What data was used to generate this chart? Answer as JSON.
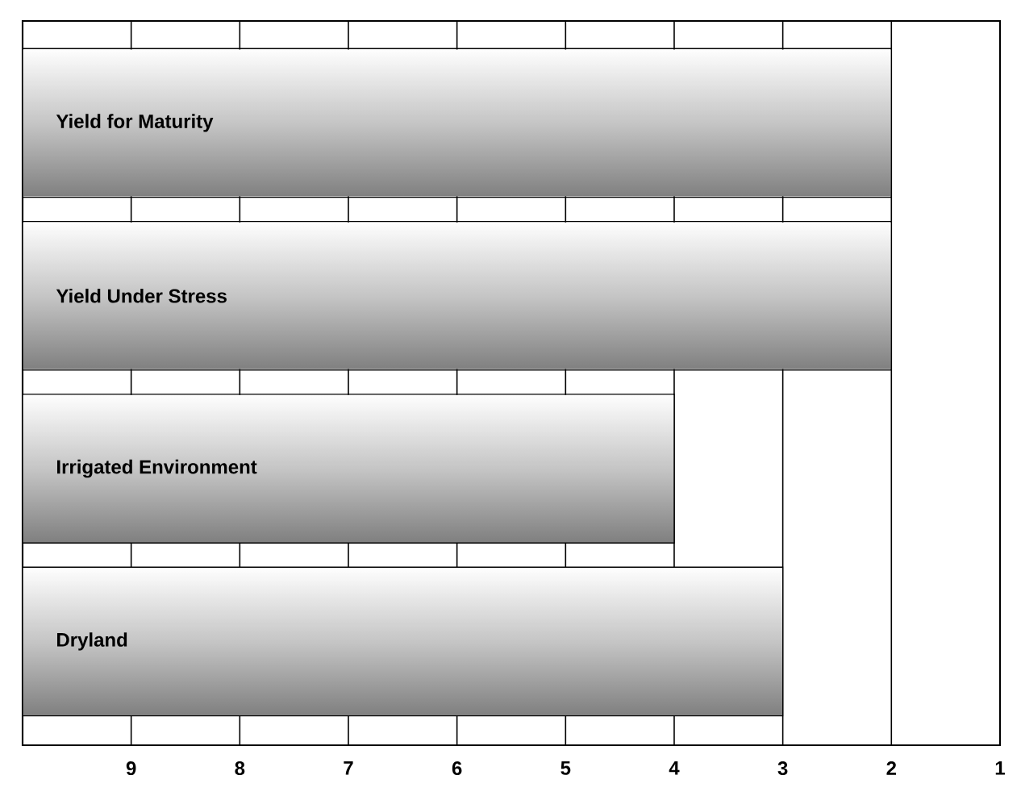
{
  "chart_data": {
    "type": "bar",
    "orientation": "horizontal",
    "categories": [
      "Yield for Maturity",
      "Yield Under Stress",
      "Irrigated Environment",
      "Dryland"
    ],
    "base": [
      10,
      10,
      10,
      10
    ],
    "values": [
      -8,
      -8,
      -6,
      -7
    ],
    "color": "#7f7f7f",
    "xlim": [
      10,
      1
    ],
    "xticks": [
      9,
      8,
      7,
      6,
      5,
      4,
      3,
      2,
      1
    ],
    "grid": "x"
  }
}
